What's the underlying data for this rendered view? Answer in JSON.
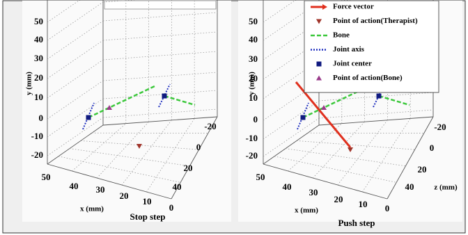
{
  "panels": [
    {
      "y_ticks": [
        50,
        40,
        30,
        20,
        10,
        0,
        -10,
        -20
      ],
      "x_ticks": [
        50,
        40,
        30,
        20,
        10,
        0
      ],
      "z_ticks": [
        -20,
        0,
        20,
        40
      ],
      "y_label": "y (mm)",
      "x_label": "x (mm)",
      "caption": "Stop step"
    },
    {
      "y_ticks": [
        50,
        40,
        30,
        20,
        10,
        0,
        -10,
        -20
      ],
      "x_ticks": [
        50,
        40,
        30,
        20,
        10,
        0
      ],
      "z_ticks": [
        -20,
        0,
        20,
        40
      ],
      "y_label": "y (mm)",
      "x_label": "x (mm)",
      "z_label": "z (mm)",
      "caption": "Push step",
      "legend": [
        "Force vector",
        "Point of action(Therapist)",
        "Bone",
        "Joint axis",
        "Joint center",
        "Point of action(Bone)"
      ]
    }
  ]
}
